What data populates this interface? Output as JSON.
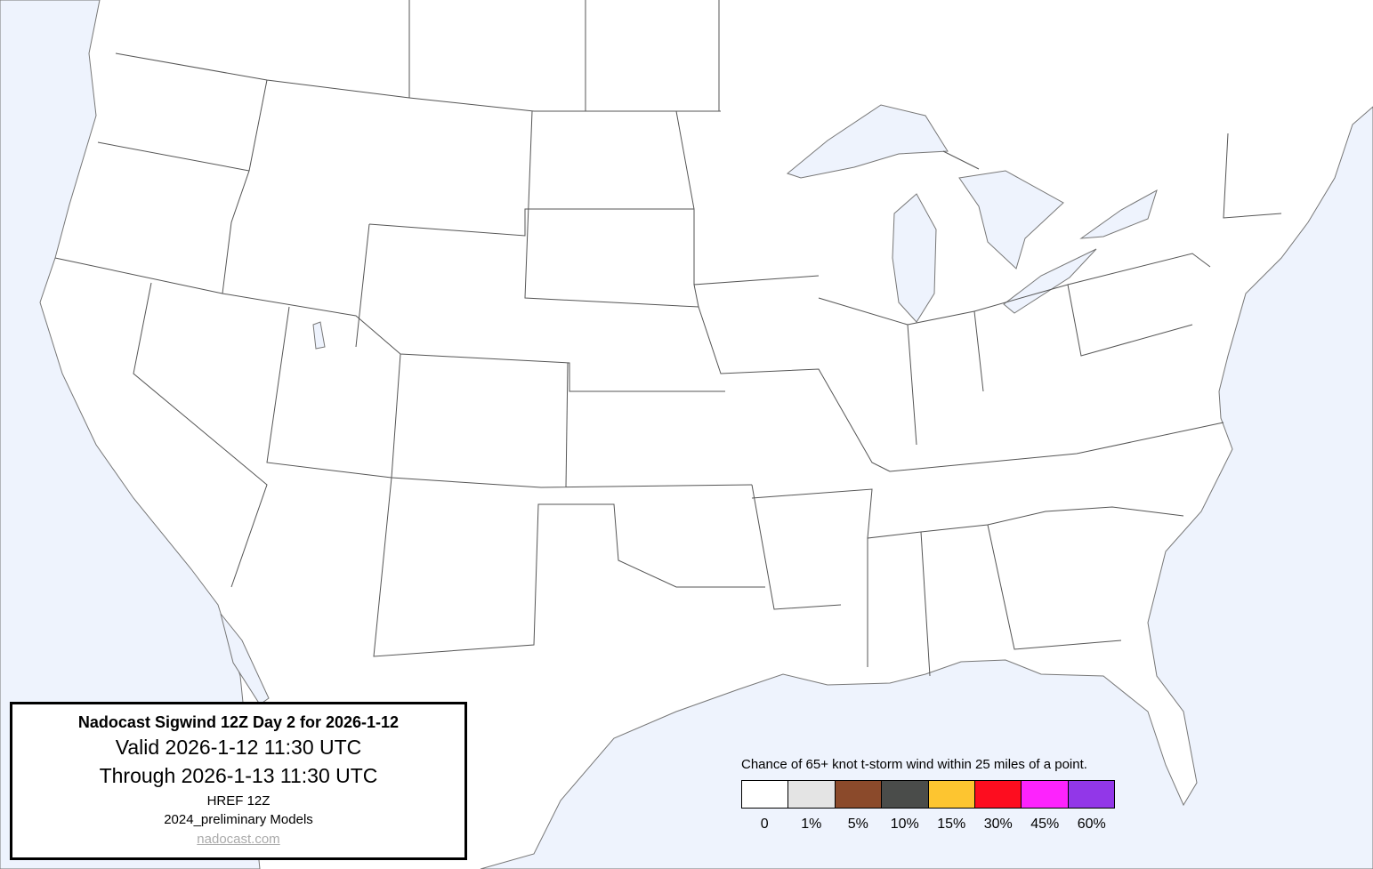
{
  "title_box": {
    "title": "Nadocast Sigwind 12Z Day 2 for 2026-1-12",
    "valid": "Valid 2026-1-12 11:30 UTC",
    "through": "Through 2026-1-13 11:30 UTC",
    "model": "HREF 12Z",
    "models_version": "2024_preliminary Models",
    "link": "nadocast.com"
  },
  "legend": {
    "title": "Chance of 65+ knot t-storm wind within 25 miles of a point.",
    "bins": [
      {
        "label": "0",
        "color": "#ffffff"
      },
      {
        "label": "1%",
        "color": "#e4e4e4"
      },
      {
        "label": "5%",
        "color": "#8b4a2b"
      },
      {
        "label": "10%",
        "color": "#4a4c4a"
      },
      {
        "label": "15%",
        "color": "#fdc530"
      },
      {
        "label": "30%",
        "color": "#fd0d1f"
      },
      {
        "label": "45%",
        "color": "#fd23fd"
      },
      {
        "label": "60%",
        "color": "#9237e8"
      }
    ]
  },
  "colors": {
    "water": "#eef3fd",
    "land": "#ffffff",
    "borders": "#555555"
  }
}
